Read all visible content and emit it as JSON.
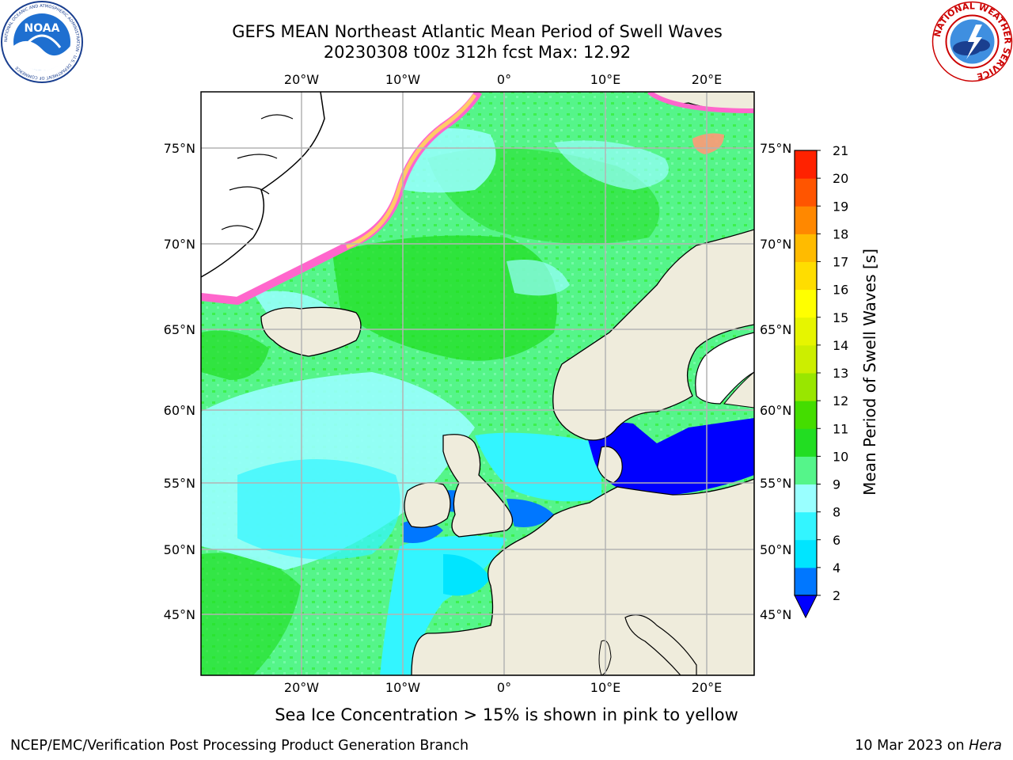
{
  "header": {
    "title_line1": "GEFS MEAN Northeast Atlantic Mean Period of Swell Waves",
    "title_line2": "20230308 t00z 312h fcst   Max: 12.92"
  },
  "logos": {
    "noaa": {
      "text": "NOAA",
      "ring_text": "NATIONAL OCEANIC AND ATMOSPHERIC ADMINISTRATION · U.S. DEPARTMENT OF COMMERCE"
    },
    "nws": {
      "ring_text": "NATIONAL WEATHER SERVICE"
    }
  },
  "map": {
    "lon_labels": [
      "20°W",
      "10°W",
      "0°",
      "10°E",
      "20°E"
    ],
    "lat_labels": [
      "75°N",
      "70°N",
      "65°N",
      "60°N",
      "55°N",
      "50°N",
      "45°N"
    ],
    "colors": {
      "land": "#efecdc",
      "ice_free_white": "#ffffff",
      "grid": "#b3b3b3"
    }
  },
  "colorbar": {
    "title": "Mean Period of Swell Waves [s]",
    "ticks": [
      "2",
      "4",
      "6",
      "8",
      "9",
      "10",
      "11",
      "12",
      "13",
      "14",
      "15",
      "16",
      "17",
      "18",
      "19",
      "20",
      "21"
    ],
    "colors": [
      "#0077ff",
      "#00e5ff",
      "#33f5ff",
      "#99ffff",
      "#55f58a",
      "#22dd22",
      "#44dd00",
      "#99e600",
      "#ccee00",
      "#e6f500",
      "#ffff00",
      "#ffdd00",
      "#ffbb00",
      "#ff8800",
      "#ff5500",
      "#ff2200"
    ],
    "under_color": "#0000ff"
  },
  "caption": "Sea Ice Concentration > 15% is shown in pink to yellow",
  "footer": {
    "left": "NCEP/EMC/Verification Post Processing Product Generation Branch",
    "right_date": "10 Mar 2023 on ",
    "right_host": "Hera"
  }
}
